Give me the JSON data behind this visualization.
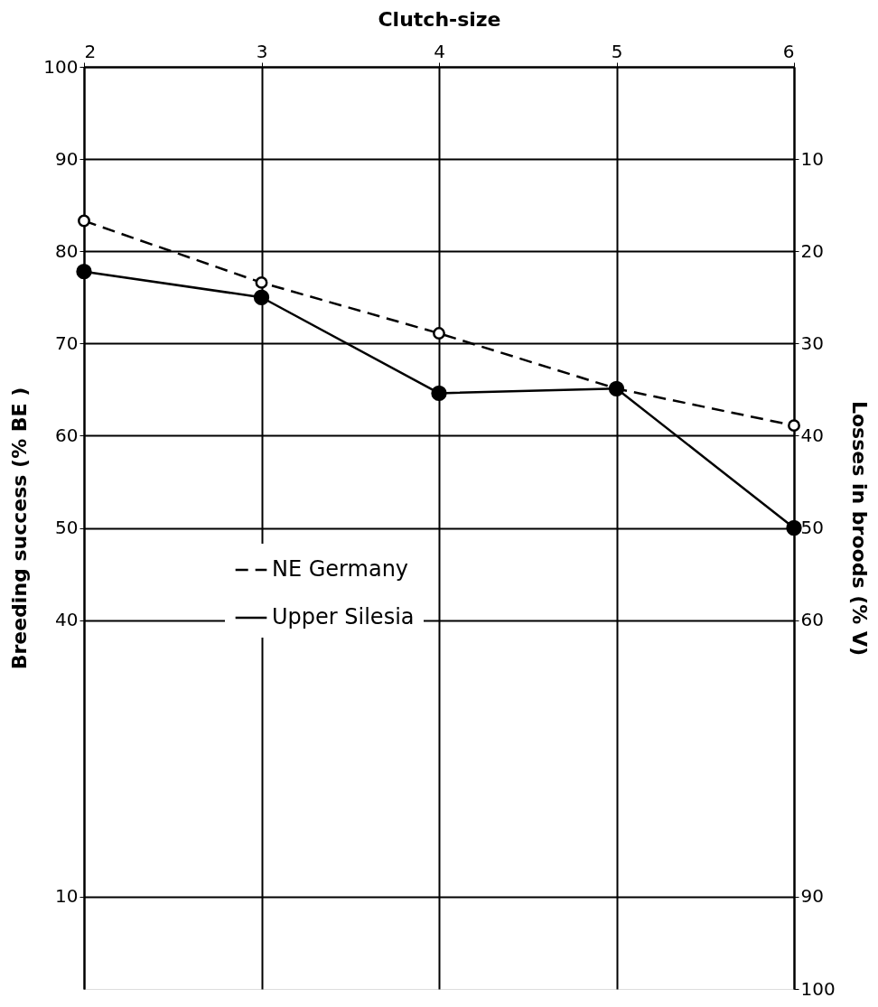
{
  "chart_data": {
    "type": "line",
    "xlabel": "Clutch-size",
    "ylabel": "Breeding success (% BE )",
    "y2label": "Losses in broods (% V)",
    "x": [
      2,
      3,
      4,
      5,
      6
    ],
    "xlim": [
      2,
      6
    ],
    "xticks": [
      2,
      3,
      4,
      5,
      6
    ],
    "ylim": [
      0,
      100
    ],
    "yticks": [
      10,
      40,
      50,
      60,
      70,
      80,
      90,
      100
    ],
    "y2lim": [
      100,
      0
    ],
    "y2ticks": [
      10,
      20,
      30,
      40,
      50,
      60,
      90,
      100
    ],
    "grid": true,
    "legend": "bottom",
    "marker": "circle",
    "series": [
      {
        "name": "NE Germany",
        "color": "#000000",
        "line_style": "dashed",
        "values": [
          83.3,
          76.6,
          71.1,
          65.1,
          61.1
        ]
      },
      {
        "name": "Upper Silesia",
        "color": "#000000",
        "line_style": "solid",
        "values": [
          77.8,
          75.0,
          64.6,
          65.1,
          50.0
        ]
      }
    ]
  }
}
